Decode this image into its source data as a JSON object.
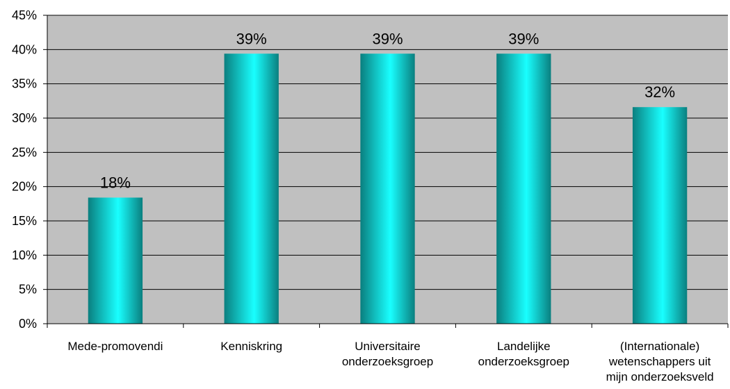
{
  "chart_data": {
    "type": "bar",
    "categories": [
      [
        "Mede-promovendi"
      ],
      [
        "Kenniskring"
      ],
      [
        "Universitaire",
        "onderzoeksgroep"
      ],
      [
        "Landelijke",
        "onderzoeksgroep"
      ],
      [
        "(Internationale)",
        "wetenschappers uit",
        "mijn onderzoeksveld"
      ]
    ],
    "values": [
      18.4,
      39.4,
      39.4,
      39.4,
      31.6
    ],
    "data_labels": [
      "18%",
      "39%",
      "39%",
      "39%",
      "32%"
    ],
    "title": "",
    "xlabel": "",
    "ylabel": "",
    "ylim": [
      0,
      45
    ],
    "yticks": [
      0,
      5,
      10,
      15,
      20,
      25,
      30,
      35,
      40,
      45
    ],
    "ytick_labels": [
      "0%",
      "5%",
      "10%",
      "15%",
      "20%",
      "25%",
      "30%",
      "35%",
      "40%",
      "45%"
    ],
    "grid": true,
    "legend": "none",
    "colors": {
      "plot_background": "#c0c0c0",
      "bar_dark": "#0a7f7f",
      "bar_light": "#19ffff",
      "gridline": "#000000"
    }
  }
}
